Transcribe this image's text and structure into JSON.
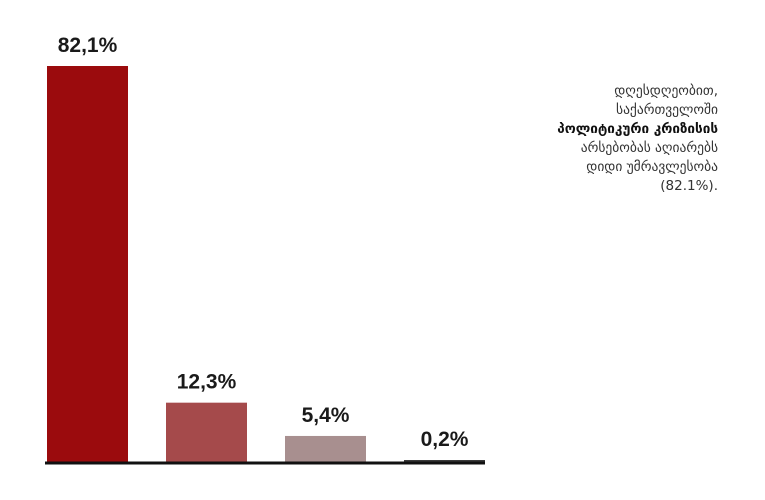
{
  "chart_data": {
    "type": "bar",
    "categories": [
      null,
      null,
      null,
      null
    ],
    "values": [
      82.1,
      12.3,
      5.4,
      0.2
    ],
    "value_labels": [
      "82,1%",
      "12,3%",
      "5,4%",
      "0,2%"
    ],
    "colors": [
      "#9b0b0d",
      "#a54a4b",
      "#a88f8f",
      "#3a3a3a"
    ],
    "annotation": [
      "დღესდღეობით,",
      "საქართველოში",
      "პოლიტიკური კრიზისის",
      "არსებობას აღიარებს",
      "დიდი უმრავლესობა",
      "(82.1%)."
    ]
  }
}
